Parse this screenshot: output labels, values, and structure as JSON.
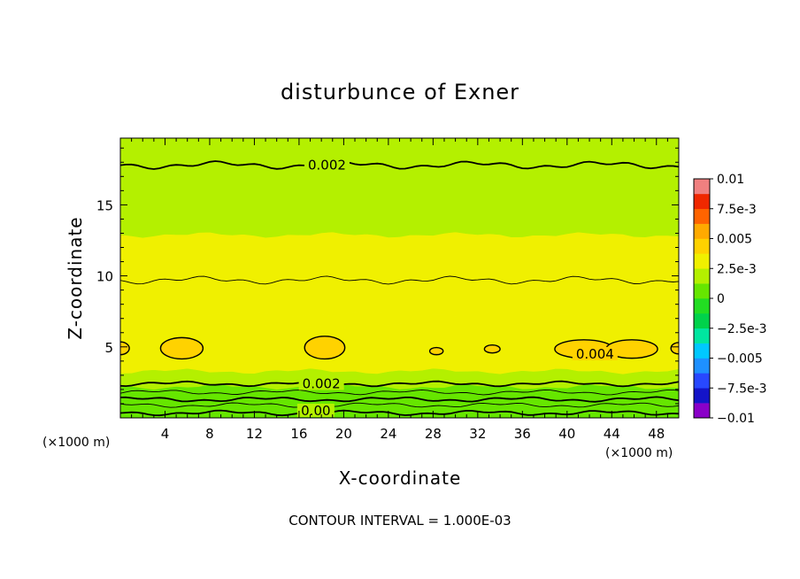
{
  "chart_data": {
    "type": "heatmap",
    "title": "disturbunce of Exner",
    "xlabel": "X-coordinate",
    "ylabel": "Z-coordinate",
    "x_unit": "(×1000 m)",
    "y_unit": "(×1000 m)",
    "footer": "CONTOUR INTERVAL = 1.000E-03",
    "xlim": [
      0,
      50
    ],
    "ylim": [
      0,
      19.7
    ],
    "x_ticks": [
      4,
      8,
      12,
      16,
      20,
      24,
      28,
      32,
      36,
      40,
      44,
      48
    ],
    "y_ticks": [
      5,
      10,
      15
    ],
    "contour_interval": 0.001,
    "contour_labels": [
      {
        "text": "0.002",
        "x": 18.5,
        "z": 17.8
      },
      {
        "text": "0.004",
        "x": 42.5,
        "z": 4.5
      },
      {
        "text": "0.002",
        "x": 18,
        "z": 2.4
      },
      {
        "text": "0.00",
        "x": 17.5,
        "z": 0.5
      }
    ],
    "colorbar": {
      "ticks": [
        "0.01",
        "7.5e-3",
        "0.005",
        "2.5e-3",
        "0",
        "−2.5e-3",
        "−0.005",
        "−7.5e-3",
        "−0.01"
      ],
      "tick_values": [
        0.01,
        0.0075,
        0.005,
        0.0025,
        0,
        -0.0025,
        -0.005,
        -0.0075,
        -0.01
      ],
      "range": [
        -0.01,
        0.01
      ],
      "colors": [
        "#8a00c8",
        "#1414c8",
        "#2848ff",
        "#1e90ff",
        "#00c8ff",
        "#00e6a0",
        "#00d24b",
        "#22dd22",
        "#66e600",
        "#b4f000",
        "#f0f000",
        "#ffd200",
        "#ffaa00",
        "#ff6400",
        "#f02800",
        "#f08080"
      ]
    },
    "field_levels": [
      {
        "z_from": 0.0,
        "z_to": 0.5,
        "value": 0.0001
      },
      {
        "z_from": 0.5,
        "z_to": 1.0,
        "value": 0.0004
      },
      {
        "z_from": 1.0,
        "z_to": 1.6,
        "value": 0.0008
      },
      {
        "z_from": 1.6,
        "z_to": 2.2,
        "value": 0.0012
      },
      {
        "z_from": 2.2,
        "z_to": 2.8,
        "value": 0.0016
      },
      {
        "z_from": 2.8,
        "z_to": 3.3,
        "value": 0.0021
      },
      {
        "z_from": 3.3,
        "z_to": 3.8,
        "value": 0.0026
      },
      {
        "z_from": 3.8,
        "z_to": 6.5,
        "value": 0.0034
      },
      {
        "z_from": 6.5,
        "z_to": 7.3,
        "value": 0.003
      },
      {
        "z_from": 7.3,
        "z_to": 9.8,
        "value": 0.0028
      },
      {
        "z_from": 9.8,
        "z_to": 12.9,
        "value": 0.0026
      },
      {
        "z_from": 12.9,
        "z_to": 17.8,
        "value": 0.0021
      },
      {
        "z_from": 17.8,
        "z_to": 19.7,
        "value": 0.0016
      }
    ],
    "high_patches": [
      {
        "x": 0.0,
        "z": 4.9,
        "rx": 0.8,
        "rz": 0.45
      },
      {
        "x": 5.5,
        "z": 4.9,
        "rx": 1.9,
        "rz": 0.75
      },
      {
        "x": 18.3,
        "z": 4.95,
        "rx": 1.8,
        "rz": 0.8
      },
      {
        "x": 28.3,
        "z": 4.7,
        "rx": 0.6,
        "rz": 0.25
      },
      {
        "x": 33.3,
        "z": 4.85,
        "rx": 0.7,
        "rz": 0.28
      },
      {
        "x": 41.5,
        "z": 4.85,
        "rx": 2.6,
        "rz": 0.65
      },
      {
        "x": 45.8,
        "z": 4.85,
        "rx": 2.3,
        "rz": 0.65
      },
      {
        "x": 50.0,
        "z": 4.9,
        "rx": 0.7,
        "rz": 0.4
      }
    ],
    "contour_lines": [
      {
        "level": 0.002,
        "weight": "bold",
        "z": 17.8
      },
      {
        "level": 0.0025,
        "weight": "thin",
        "z": 9.7
      },
      {
        "level": 0.002,
        "weight": "bold",
        "z": 2.4
      },
      {
        "level": 0.0015,
        "weight": "thin",
        "z": 1.8
      },
      {
        "level": 0.001,
        "weight": "bold",
        "z": 1.3
      },
      {
        "level": 0.0005,
        "weight": "thin",
        "z": 0.9
      },
      {
        "level": 0.0,
        "weight": "bold",
        "z": 0.35
      }
    ]
  }
}
